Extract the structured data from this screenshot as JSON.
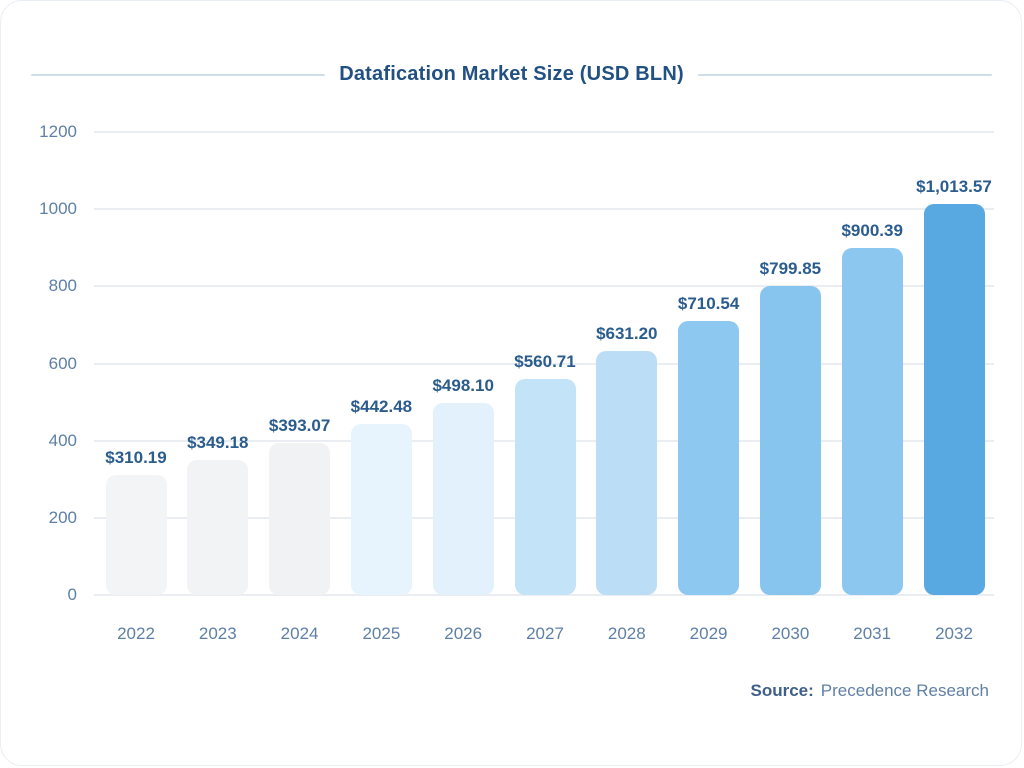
{
  "chart_data": {
    "type": "bar",
    "title": "Datafication Market Size (USD BLN)",
    "categories": [
      "2022",
      "2023",
      "2024",
      "2025",
      "2026",
      "2027",
      "2028",
      "2029",
      "2030",
      "2031",
      "2032"
    ],
    "values": [
      310.19,
      349.18,
      393.07,
      442.48,
      498.1,
      560.71,
      631.2,
      710.54,
      799.85,
      900.39,
      1013.57
    ],
    "value_labels": [
      "$310.19",
      "$349.18",
      "$393.07",
      "$442.48",
      "$498.10",
      "$560.71",
      "$631.20",
      "$710.54",
      "$799.85",
      "$900.39",
      "$1,013.57"
    ],
    "bar_colors": [
      "#f3f4f6",
      "#f2f3f5",
      "#f1f2f4",
      "#e8f4fd",
      "#e3f1fc",
      "#c3e3f8",
      "#bbdef6",
      "#8dc8f0",
      "#88c5ee",
      "#8cc7ef",
      "#58a9e1"
    ],
    "yticks": [
      0,
      200,
      400,
      600,
      800,
      1000,
      1200
    ],
    "ylim": [
      0,
      1200
    ],
    "xlabel": "",
    "ylabel": "",
    "grid": true,
    "legend_position": "none"
  },
  "source": {
    "label": "Source:",
    "value": "Precedence Research"
  },
  "colors": {
    "title": "#215183",
    "data_label": "#2b5c8e",
    "axis_label": "#5e80a6",
    "gridline": "#eaeef3",
    "divider": "#cfdfea",
    "card_border": "#e9eef5",
    "background": "#ffffff"
  }
}
